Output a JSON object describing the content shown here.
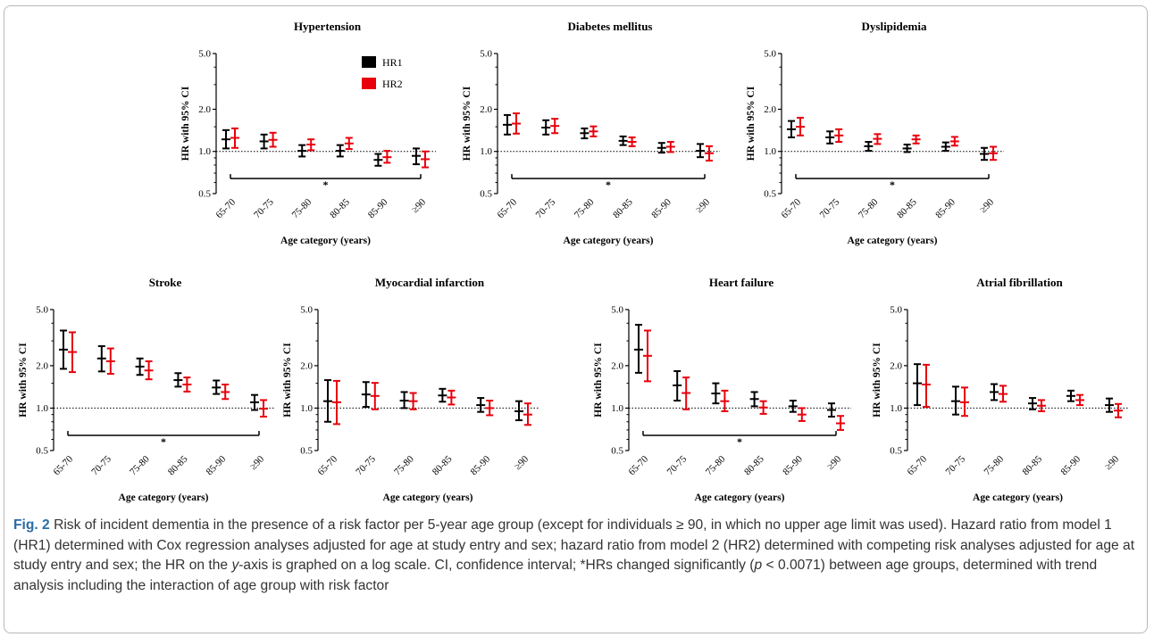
{
  "legend": [
    {
      "label": "HR1",
      "color": "#000000"
    },
    {
      "label": "HR2",
      "color": "#e8000b"
    }
  ],
  "chart_data": [
    {
      "type": "errorbar",
      "title": "Hypertension",
      "ylabel": "HR with 95% CI",
      "xlabel": "Age category (years)",
      "yscale": "log",
      "ylim": [
        0.5,
        5.0
      ],
      "yticks": [
        "0.5",
        "1.0",
        "2.0",
        "5.0"
      ],
      "reference_line": 1.0,
      "categories": [
        "65-70",
        "70-75",
        "75-80",
        "80-85",
        "85-90",
        "≥90"
      ],
      "series": [
        {
          "name": "HR1",
          "values": [
            1.22,
            1.18,
            1.01,
            1.01,
            0.87,
            0.93
          ],
          "lower": [
            1.05,
            1.05,
            0.92,
            0.92,
            0.79,
            0.81
          ],
          "upper": [
            1.42,
            1.32,
            1.11,
            1.11,
            0.96,
            1.05
          ]
        },
        {
          "name": "HR2",
          "values": [
            1.25,
            1.21,
            1.12,
            1.14,
            0.91,
            0.88
          ],
          "lower": [
            1.06,
            1.08,
            1.02,
            1.04,
            0.83,
            0.77
          ],
          "upper": [
            1.46,
            1.36,
            1.22,
            1.25,
            1.01,
            1.0
          ]
        }
      ],
      "significance": {
        "label": "*",
        "from": "65-70",
        "to": "≥90"
      },
      "legend": "top-center"
    },
    {
      "type": "errorbar",
      "title": "Diabetes mellitus",
      "ylabel": "HR with 95% CI",
      "xlabel": "Age category (years)",
      "yscale": "log",
      "ylim": [
        0.5,
        5.0
      ],
      "yticks": [
        "0.5",
        "1.0",
        "2.0",
        "5.0"
      ],
      "reference_line": 1.0,
      "categories": [
        "65-70",
        "70-75",
        "75-80",
        "80-85",
        "85-90",
        "≥90"
      ],
      "series": [
        {
          "name": "HR1",
          "values": [
            1.55,
            1.48,
            1.35,
            1.19,
            1.06,
            1.01
          ],
          "lower": [
            1.32,
            1.32,
            1.24,
            1.11,
            0.98,
            0.91
          ],
          "upper": [
            1.82,
            1.67,
            1.46,
            1.28,
            1.15,
            1.13
          ]
        },
        {
          "name": "HR2",
          "values": [
            1.58,
            1.52,
            1.39,
            1.17,
            1.08,
            0.97
          ],
          "lower": [
            1.34,
            1.35,
            1.28,
            1.09,
            0.99,
            0.86
          ],
          "upper": [
            1.87,
            1.71,
            1.51,
            1.26,
            1.17,
            1.09
          ]
        }
      ],
      "significance": {
        "label": "*",
        "from": "65-70",
        "to": "≥90"
      }
    },
    {
      "type": "errorbar",
      "title": "Dyslipidemia",
      "ylabel": "HR with 95% CI",
      "xlabel": "Age category (years)",
      "yscale": "log",
      "ylim": [
        0.5,
        5.0
      ],
      "yticks": [
        "0.5",
        "1.0",
        "2.0",
        "5.0"
      ],
      "reference_line": 1.0,
      "categories": [
        "65-70",
        "70-75",
        "75-80",
        "80-85",
        "85-90",
        "≥90"
      ],
      "series": [
        {
          "name": "HR1",
          "values": [
            1.44,
            1.26,
            1.09,
            1.05,
            1.08,
            0.96
          ],
          "lower": [
            1.26,
            1.14,
            1.01,
            0.99,
            1.01,
            0.87
          ],
          "upper": [
            1.65,
            1.39,
            1.17,
            1.12,
            1.16,
            1.06
          ]
        },
        {
          "name": "HR2",
          "values": [
            1.5,
            1.3,
            1.23,
            1.22,
            1.18,
            0.97
          ],
          "lower": [
            1.3,
            1.17,
            1.13,
            1.14,
            1.1,
            0.87
          ],
          "upper": [
            1.74,
            1.44,
            1.33,
            1.3,
            1.27,
            1.08
          ]
        }
      ],
      "significance": {
        "label": "*",
        "from": "65-70",
        "to": "≥90"
      }
    },
    {
      "type": "errorbar",
      "title": "Stroke",
      "ylabel": "HR with 95% CI",
      "xlabel": "Age category (years)",
      "yscale": "log",
      "ylim": [
        0.5,
        5.0
      ],
      "yticks": [
        "0.5",
        "1.0",
        "2.0",
        "5.0"
      ],
      "reference_line": 1.0,
      "categories": [
        "65-70",
        "70-75",
        "75-80",
        "80-85",
        "85-90",
        "≥90"
      ],
      "series": [
        {
          "name": "HR1",
          "values": [
            2.6,
            2.25,
            1.97,
            1.58,
            1.4,
            1.1
          ],
          "lower": [
            1.9,
            1.82,
            1.72,
            1.42,
            1.26,
            0.97
          ],
          "upper": [
            3.55,
            2.75,
            2.25,
            1.77,
            1.57,
            1.24
          ]
        },
        {
          "name": "HR2",
          "values": [
            2.5,
            2.15,
            1.85,
            1.47,
            1.3,
            0.99
          ],
          "lower": [
            1.8,
            1.75,
            1.6,
            1.31,
            1.16,
            0.87
          ],
          "upper": [
            3.45,
            2.65,
            2.15,
            1.65,
            1.47,
            1.14
          ]
        }
      ],
      "significance": {
        "label": "*",
        "from": "65-70",
        "to": "≥90"
      }
    },
    {
      "type": "errorbar",
      "title": "Myocardial infarction",
      "ylabel": "HR with 95% CI",
      "xlabel": "Age category (years)",
      "yscale": "log",
      "ylim": [
        0.5,
        5.0
      ],
      "yticks": [
        "0.5",
        "1.0",
        "2.0",
        "5.0"
      ],
      "reference_line": 1.0,
      "categories": [
        "65-70",
        "70-75",
        "75-80",
        "80-85",
        "85-90",
        "≥90"
      ],
      "series": [
        {
          "name": "HR1",
          "values": [
            1.12,
            1.25,
            1.13,
            1.23,
            1.05,
            0.95
          ],
          "lower": [
            0.8,
            1.02,
            1.0,
            1.11,
            0.94,
            0.82
          ],
          "upper": [
            1.58,
            1.53,
            1.3,
            1.37,
            1.18,
            1.12
          ]
        },
        {
          "name": "HR2",
          "values": [
            1.1,
            1.22,
            1.12,
            1.19,
            1.0,
            0.9
          ],
          "lower": [
            0.77,
            0.98,
            0.98,
            1.06,
            0.89,
            0.76
          ],
          "upper": [
            1.56,
            1.51,
            1.28,
            1.33,
            1.13,
            1.08
          ]
        }
      ]
    },
    {
      "type": "errorbar",
      "title": "Heart failure",
      "ylabel": "HR with 95% CI",
      "xlabel": "Age category (years)",
      "yscale": "log",
      "ylim": [
        0.5,
        5.0
      ],
      "yticks": [
        "0.5",
        "1.0",
        "2.0",
        "5.0"
      ],
      "reference_line": 1.0,
      "categories": [
        "65-70",
        "70-75",
        "75-80",
        "80-85",
        "85-90",
        "≥90"
      ],
      "series": [
        {
          "name": "HR1",
          "values": [
            2.6,
            1.45,
            1.27,
            1.16,
            1.03,
            0.97
          ],
          "lower": [
            1.78,
            1.13,
            1.08,
            1.03,
            0.94,
            0.87
          ],
          "upper": [
            3.9,
            1.83,
            1.5,
            1.3,
            1.13,
            1.08
          ]
        },
        {
          "name": "HR2",
          "values": [
            2.35,
            1.28,
            1.12,
            1.01,
            0.9,
            0.78
          ],
          "lower": [
            1.55,
            0.98,
            0.95,
            0.91,
            0.81,
            0.7
          ],
          "upper": [
            3.55,
            1.65,
            1.33,
            1.12,
            1.0,
            0.88
          ]
        }
      ],
      "significance": {
        "label": "*",
        "from": "65-70",
        "to": "≥90"
      }
    },
    {
      "type": "errorbar",
      "title": "Atrial fibrillation",
      "ylabel": "HR with 95% CI",
      "xlabel": "Age category (years)",
      "yscale": "log",
      "ylim": [
        0.5,
        5.0
      ],
      "yticks": [
        "0.5",
        "1.0",
        "2.0",
        "5.0"
      ],
      "reference_line": 1.0,
      "categories": [
        "65-70",
        "70-75",
        "75-80",
        "80-85",
        "85-90",
        "≥90"
      ],
      "series": [
        {
          "name": "HR1",
          "values": [
            1.5,
            1.12,
            1.3,
            1.08,
            1.22,
            1.05
          ],
          "lower": [
            1.05,
            0.9,
            1.14,
            0.98,
            1.12,
            0.94
          ],
          "upper": [
            2.05,
            1.42,
            1.48,
            1.18,
            1.33,
            1.17
          ]
        },
        {
          "name": "HR2",
          "values": [
            1.47,
            1.1,
            1.26,
            1.04,
            1.14,
            0.96
          ],
          "lower": [
            1.02,
            0.88,
            1.11,
            0.95,
            1.05,
            0.86
          ],
          "upper": [
            2.03,
            1.4,
            1.44,
            1.14,
            1.24,
            1.07
          ]
        }
      ]
    }
  ],
  "caption": {
    "fig_label": "Fig. 2",
    "text_1": " Risk of incident dementia in the presence of a risk factor per 5-year age group (except for individuals ≥ 90, in which no upper age limit was used). Hazard ratio from model 1 (HR1) determined with Cox regression analyses adjusted for age at study entry and sex; hazard ratio from model 2 (HR2) determined with competing risk analyses adjusted for age at study entry and sex; the HR on the ",
    "y_axis_word": "y",
    "text_2": "-axis is graphed on a log scale. CI, confidence interval; *HRs changed significantly (",
    "p_symbol": "p",
    "text_3": " < 0.0071) between age groups, determined with trend analysis including the interaction of age group with risk factor"
  }
}
